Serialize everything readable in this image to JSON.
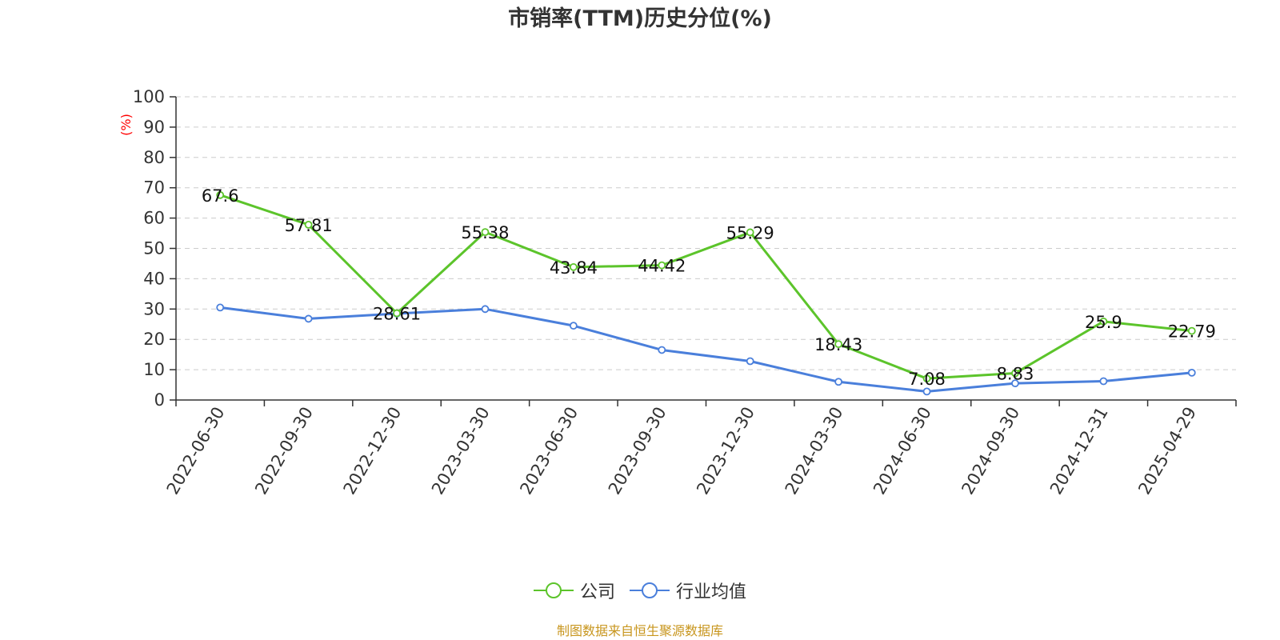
{
  "chart_data": {
    "type": "line",
    "title": "市销率(TTM)历史分位(%)",
    "ylabel": "(%)",
    "xlabel": "",
    "ylim": [
      0,
      100
    ],
    "yticks": [
      0,
      10,
      20,
      30,
      40,
      50,
      60,
      70,
      80,
      90,
      100
    ],
    "grid": true,
    "legend_position": "bottom-center",
    "categories": [
      "2022-06-30",
      "2022-09-30",
      "2022-12-30",
      "2023-03-30",
      "2023-06-30",
      "2023-09-30",
      "2023-12-30",
      "2024-03-30",
      "2024-06-30",
      "2024-09-30",
      "2024-12-31",
      "2025-04-29"
    ],
    "series": [
      {
        "name": "公司",
        "color": "#5cc42b",
        "values": [
          67.6,
          57.81,
          28.61,
          55.38,
          43.84,
          44.42,
          55.29,
          18.43,
          7.08,
          8.83,
          25.9,
          22.79
        ],
        "labels": [
          "67.6",
          "57.81",
          "28.61",
          "55.38",
          "43.84",
          "44.42",
          "55.29",
          "18.43",
          "7.08",
          "8.83",
          "25.9",
          "22.79"
        ],
        "show_labels": true
      },
      {
        "name": "行业均值",
        "color": "#4a7fdb",
        "values": [
          30.5,
          26.8,
          28.5,
          30.0,
          24.5,
          16.5,
          12.8,
          6.0,
          2.8,
          5.5,
          6.2,
          9.0
        ],
        "show_labels": false
      }
    ]
  },
  "source_note": "制图数据来自恒生聚源数据库"
}
